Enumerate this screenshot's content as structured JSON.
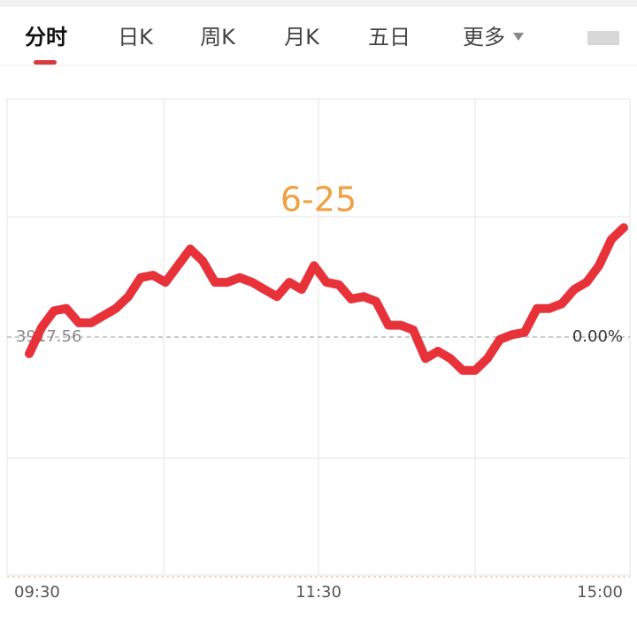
{
  "tabs": [
    "分时",
    "日K",
    "周K",
    "月K",
    "五日",
    "更多"
  ],
  "chart_data": {
    "type": "line",
    "annotation": "6-25",
    "base_label": "3917.56",
    "categories": [
      "09:30",
      null,
      null,
      null,
      null,
      null,
      null,
      null,
      null,
      null,
      null,
      null,
      null,
      null,
      null,
      null,
      null,
      null,
      null,
      null,
      null,
      null,
      null,
      null,
      "11:30",
      null,
      null,
      null,
      null,
      null,
      null,
      null,
      null,
      null,
      null,
      null,
      null,
      null,
      null,
      null,
      null,
      null,
      null,
      null,
      null,
      null,
      null,
      null,
      "15:00"
    ],
    "series": [
      {
        "color": "#e8323a",
        "values": [
          -0.07,
          0.04,
          0.11,
          0.12,
          0.06,
          0.06,
          0.09,
          0.12,
          0.17,
          0.25,
          0.26,
          0.23,
          0.3,
          0.37,
          0.32,
          0.23,
          0.23,
          0.25,
          0.23,
          0.2,
          0.17,
          0.23,
          0.2,
          0.3,
          0.23,
          0.22,
          0.16,
          0.17,
          0.15,
          0.05,
          0.05,
          0.03,
          -0.09,
          -0.06,
          -0.09,
          -0.14,
          -0.14,
          -0.09,
          -0.01,
          0.01,
          0.02,
          0.12,
          0.12,
          0.14,
          0.2,
          0.23,
          0.3,
          0.41,
          0.46
        ]
      }
    ],
    "ylim": [
      -1,
      1
    ],
    "yticks": [
      {
        "value": 0,
        "label": "0.00%"
      }
    ]
  }
}
